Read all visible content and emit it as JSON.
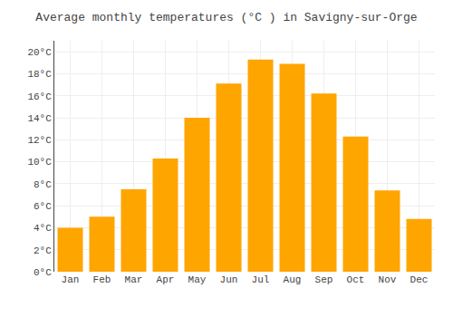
{
  "chart_data": {
    "type": "bar",
    "title": "Average monthly temperatures (°C ) in Savigny-sur-Orge",
    "categories": [
      "Jan",
      "Feb",
      "Mar",
      "Apr",
      "May",
      "Jun",
      "Jul",
      "Aug",
      "Sep",
      "Oct",
      "Nov",
      "Dec"
    ],
    "values": [
      4.0,
      5.0,
      7.5,
      10.3,
      14.0,
      17.1,
      19.3,
      18.9,
      16.2,
      12.3,
      7.4,
      4.8
    ],
    "color": "#FFA500",
    "ylim": [
      0,
      21
    ],
    "yticks": [
      {
        "value": 0,
        "label": "0°C"
      },
      {
        "value": 2,
        "label": "2°C"
      },
      {
        "value": 4,
        "label": "4°C"
      },
      {
        "value": 6,
        "label": "6°C"
      },
      {
        "value": 8,
        "label": "8°C"
      },
      {
        "value": 10,
        "label": "10°C"
      },
      {
        "value": 12,
        "label": "12°C"
      },
      {
        "value": 14,
        "label": "14°C"
      },
      {
        "value": 16,
        "label": "16°C"
      },
      {
        "value": 18,
        "label": "18°C"
      },
      {
        "value": 20,
        "label": "20°C"
      }
    ],
    "grid": true
  }
}
